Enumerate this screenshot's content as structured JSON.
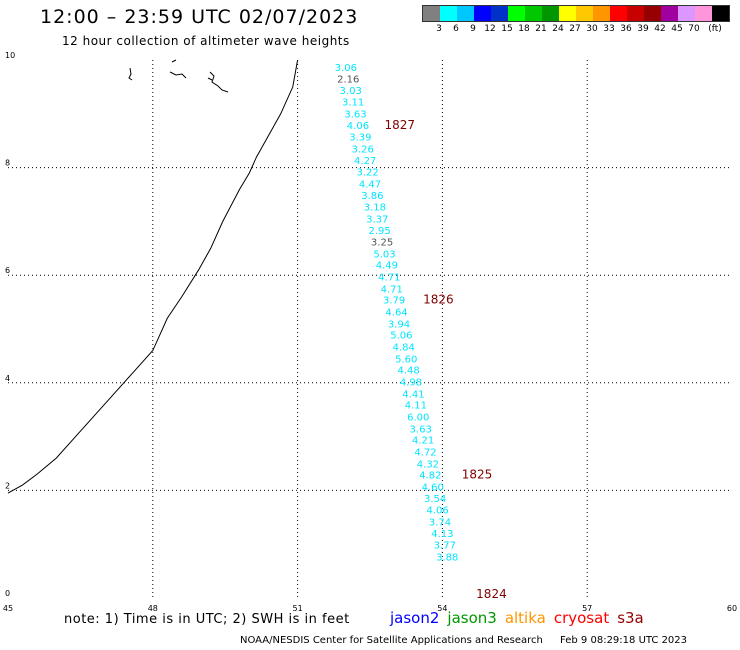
{
  "header": {
    "title": "12:00 – 23:59 UTC 02/07/2023",
    "subtitle": "12 hour collection of altimeter wave heights"
  },
  "legend": {
    "colors": [
      "#808080",
      "#00ffff",
      "#00c8ff",
      "#0000ff",
      "#0032c8",
      "#00ff00",
      "#00c800",
      "#009600",
      "#ffff00",
      "#ffc800",
      "#ff9600",
      "#ff0000",
      "#c80000",
      "#960000",
      "#a000a0",
      "#dc96ff",
      "#ff96dc",
      "#000000"
    ],
    "labels": [
      "3",
      "6",
      "9",
      "12",
      "15",
      "18",
      "21",
      "24",
      "27",
      "30",
      "33",
      "36",
      "39",
      "42",
      "45",
      "70",
      "(ft)"
    ]
  },
  "axes": {
    "x_ticks": [
      "45",
      "48",
      "51",
      "54",
      "57",
      "60"
    ],
    "y_ticks": [
      "0",
      "2",
      "4",
      "6",
      "8",
      "10"
    ]
  },
  "chart_data": {
    "type": "scatter",
    "xlim": [
      45,
      60
    ],
    "ylim": [
      0,
      10
    ],
    "grid": true,
    "gray_point_indices": [
      1,
      15
    ],
    "points": [
      {
        "x": 52.0,
        "y": 9.8,
        "label": "3.06"
      },
      {
        "x": 52.05,
        "y": 9.58,
        "label": "2.16"
      },
      {
        "x": 52.1,
        "y": 9.37,
        "label": "3.03"
      },
      {
        "x": 52.15,
        "y": 9.15,
        "label": "3.11"
      },
      {
        "x": 52.2,
        "y": 8.93,
        "label": "3.63"
      },
      {
        "x": 52.25,
        "y": 8.72,
        "label": "4.06"
      },
      {
        "x": 52.3,
        "y": 8.5,
        "label": "3.39"
      },
      {
        "x": 52.35,
        "y": 8.28,
        "label": "3.26"
      },
      {
        "x": 52.4,
        "y": 8.07,
        "label": "4.27"
      },
      {
        "x": 52.45,
        "y": 7.85,
        "label": "3.22"
      },
      {
        "x": 52.5,
        "y": 7.63,
        "label": "4.47"
      },
      {
        "x": 52.55,
        "y": 7.42,
        "label": "3.86"
      },
      {
        "x": 52.6,
        "y": 7.2,
        "label": "3.18"
      },
      {
        "x": 52.65,
        "y": 6.98,
        "label": "3.37"
      },
      {
        "x": 52.7,
        "y": 6.77,
        "label": "2.95"
      },
      {
        "x": 52.75,
        "y": 6.55,
        "label": "3.25"
      },
      {
        "x": 52.8,
        "y": 6.33,
        "label": "5.03"
      },
      {
        "x": 52.85,
        "y": 6.12,
        "label": "4.49"
      },
      {
        "x": 52.9,
        "y": 5.9,
        "label": "4.71"
      },
      {
        "x": 52.95,
        "y": 5.68,
        "label": "4.71"
      },
      {
        "x": 53.0,
        "y": 5.47,
        "label": "3.79"
      },
      {
        "x": 53.05,
        "y": 5.25,
        "label": "4.64"
      },
      {
        "x": 53.1,
        "y": 5.03,
        "label": "3.94"
      },
      {
        "x": 53.15,
        "y": 4.82,
        "label": "5.06"
      },
      {
        "x": 53.2,
        "y": 4.6,
        "label": "4.84"
      },
      {
        "x": 53.25,
        "y": 4.38,
        "label": "5.60"
      },
      {
        "x": 53.3,
        "y": 4.17,
        "label": "4.48"
      },
      {
        "x": 53.35,
        "y": 3.95,
        "label": "4.98"
      },
      {
        "x": 53.4,
        "y": 3.73,
        "label": "4.41"
      },
      {
        "x": 53.45,
        "y": 3.52,
        "label": "4.11"
      },
      {
        "x": 53.5,
        "y": 3.3,
        "label": "6.00"
      },
      {
        "x": 53.55,
        "y": 3.08,
        "label": "3.63"
      },
      {
        "x": 53.6,
        "y": 2.87,
        "label": "4.21"
      },
      {
        "x": 53.65,
        "y": 2.65,
        "label": "4.72"
      },
      {
        "x": 53.7,
        "y": 2.43,
        "label": "4.32"
      },
      {
        "x": 53.75,
        "y": 2.22,
        "label": "4.82"
      },
      {
        "x": 53.8,
        "y": 2.0,
        "label": "4.60"
      },
      {
        "x": 53.85,
        "y": 1.78,
        "label": "3.54"
      },
      {
        "x": 53.9,
        "y": 1.57,
        "label": "4.06"
      },
      {
        "x": 53.95,
        "y": 1.35,
        "label": "3.74"
      },
      {
        "x": 54.0,
        "y": 1.13,
        "label": "4.13"
      },
      {
        "x": 54.05,
        "y": 0.92,
        "label": "3.77"
      },
      {
        "x": 54.1,
        "y": 0.7,
        "label": "3.88"
      }
    ],
    "time_labels": [
      {
        "x": 52.8,
        "y": 8.72,
        "label": "1827"
      },
      {
        "x": 53.6,
        "y": 5.47,
        "label": "1826"
      },
      {
        "x": 54.4,
        "y": 2.22,
        "label": "1825"
      },
      {
        "x": 54.7,
        "y": 0.0,
        "label": "1824"
      }
    ],
    "coastline": [
      [
        51.0,
        10.0
      ],
      [
        50.9,
        9.5
      ],
      [
        50.65,
        9.0
      ],
      [
        50.4,
        8.6
      ],
      [
        50.15,
        8.2
      ],
      [
        50.0,
        7.9
      ],
      [
        49.8,
        7.6
      ],
      [
        49.45,
        7.0
      ],
      [
        49.2,
        6.5
      ],
      [
        48.95,
        6.1
      ],
      [
        48.6,
        5.6
      ],
      [
        48.3,
        5.2
      ],
      [
        48.0,
        4.6
      ],
      [
        47.6,
        4.2
      ],
      [
        47.2,
        3.8
      ],
      [
        46.8,
        3.4
      ],
      [
        46.4,
        3.0
      ],
      [
        46.0,
        2.6
      ],
      [
        45.6,
        2.3
      ],
      [
        45.3,
        2.1
      ],
      [
        45.0,
        1.95
      ]
    ]
  },
  "footer": {
    "note": "note: 1) Time is in UTC; 2) SWH is in feet",
    "satellites": [
      {
        "name": "jason2",
        "color": "#0000ff"
      },
      {
        "name": "jason3",
        "color": "#009600"
      },
      {
        "name": "altika",
        "color": "#ff9600"
      },
      {
        "name": "cryosat",
        "color": "#ff0000"
      },
      {
        "name": "s3a",
        "color": "#960000"
      }
    ],
    "credit": "NOAA/NESDIS Center for Satellite Applications and Research",
    "timestamp": "Feb  9 08:29:18 UTC 2023"
  }
}
